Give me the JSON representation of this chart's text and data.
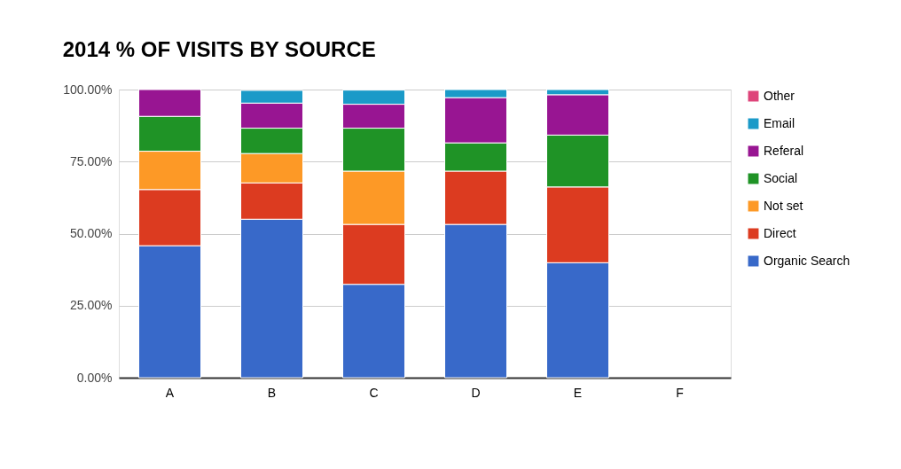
{
  "chart_data": {
    "type": "bar",
    "title": "2014 % OF VISITS BY SOURCE",
    "stacked": true,
    "categories": [
      "A",
      "B",
      "C",
      "D",
      "E",
      "F"
    ],
    "series": [
      {
        "name": "Organic Search",
        "color": "#3869c9",
        "values": [
          45.8,
          55.0,
          32.4,
          53.2,
          39.9,
          null
        ]
      },
      {
        "name": "Direct",
        "color": "#dc3b20",
        "values": [
          19.5,
          12.6,
          20.8,
          18.5,
          26.3,
          null
        ]
      },
      {
        "name": "Not set",
        "color": "#fd9926",
        "values": [
          13.3,
          10.2,
          18.5,
          null,
          null,
          null
        ]
      },
      {
        "name": "Social",
        "color": "#1f9326",
        "values": [
          12.1,
          8.8,
          14.9,
          9.8,
          18.0,
          null
        ]
      },
      {
        "name": "Referal",
        "color": "#981592",
        "values": [
          9.3,
          8.7,
          8.3,
          15.7,
          14.0,
          null
        ]
      },
      {
        "name": "Email",
        "color": "#1b9ac8",
        "values": [
          null,
          4.4,
          4.9,
          2.8,
          1.8,
          null
        ]
      },
      {
        "name": "Other",
        "color": "#de447a",
        "values": [
          null,
          null,
          null,
          null,
          null,
          null
        ]
      }
    ],
    "ylim": [
      0,
      100
    ],
    "yticks": [
      {
        "value": 0,
        "label": "0.00%"
      },
      {
        "value": 25,
        "label": "25.00%"
      },
      {
        "value": 50,
        "label": "50.00%"
      },
      {
        "value": 75,
        "label": "75.00%"
      },
      {
        "value": 100,
        "label": "100.00%"
      }
    ],
    "grid": "y",
    "legend": "right"
  }
}
